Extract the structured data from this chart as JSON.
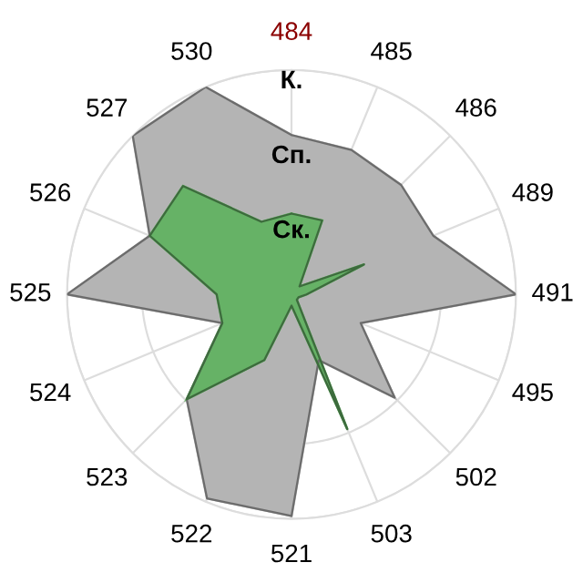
{
  "chart_data": {
    "type": "radar",
    "relative": false,
    "categories": [
      "484",
      "485",
      "486",
      "489",
      "491",
      "495",
      "502",
      "503",
      "521",
      "522",
      "523",
      "524",
      "525",
      "526",
      "527",
      "530"
    ],
    "ylim": [
      0,
      3
    ],
    "yticks": [
      {
        "value": 1,
        "label": "Ск."
      },
      {
        "value": 2,
        "label": "Сп."
      },
      {
        "value": 3,
        "label": "К."
      }
    ],
    "grid": true,
    "series": [
      {
        "color": "#b4b4b4",
        "values": [
          2.13,
          2.09,
          2.07,
          2.05,
          3.0,
          1.0,
          1.95,
          0.95,
          2.96,
          2.95,
          1.98,
          1.0,
          3.0,
          2.05,
          3.0,
          3.0
        ]
      },
      {
        "color": "#66b266",
        "values": [
          1.08,
          1.07,
          0.15,
          1.05,
          0.2,
          0.1,
          0.1,
          1.95,
          0.15,
          0.95,
          1.98,
          1.0,
          1.0,
          2.05,
          2.05,
          1.05
        ]
      }
    ]
  }
}
